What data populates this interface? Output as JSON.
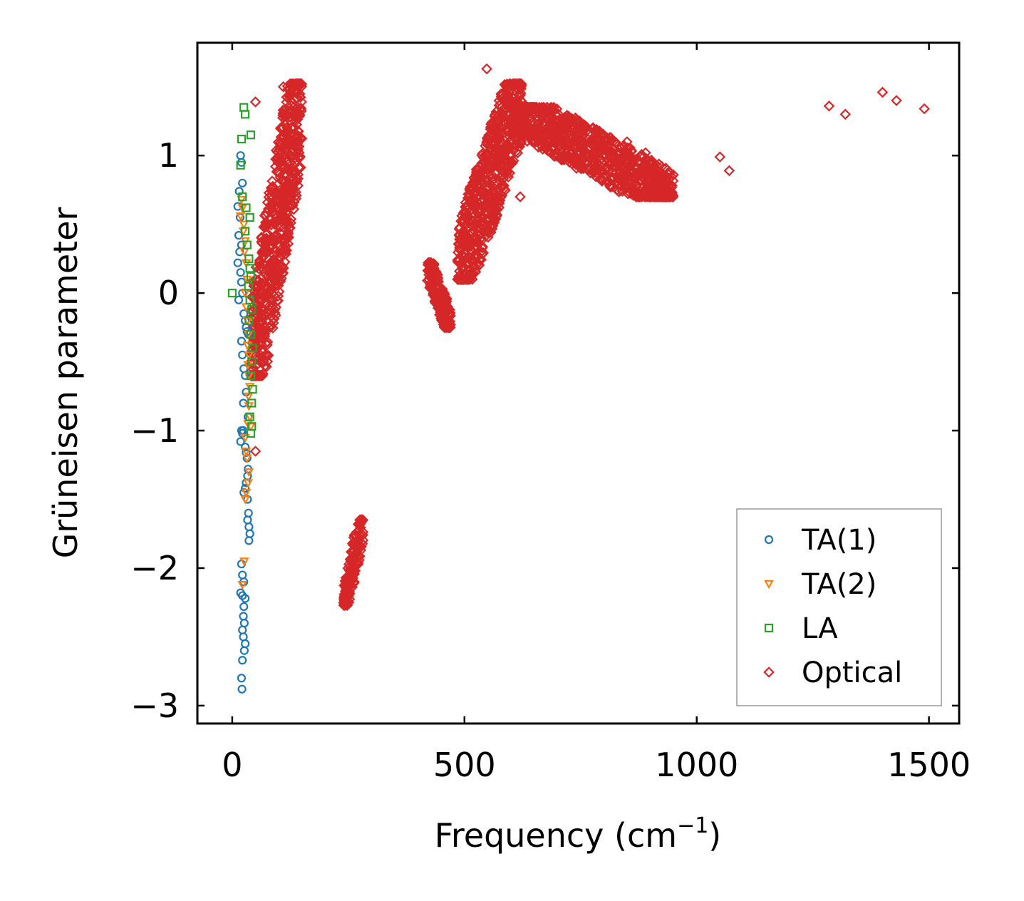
{
  "chart_data": {
    "type": "scatter",
    "title": "",
    "xlabel": "Frequency (cm",
    "xlabel_sup": "−1",
    "xlabel_end": ")",
    "ylabel": "Grüneisen parameter",
    "xlim": [
      -75,
      1565
    ],
    "ylim": [
      -3.13,
      1.82
    ],
    "xticks": [
      0,
      500,
      1000,
      1500
    ],
    "xtick_labels": [
      "0",
      "500",
      "1000",
      "1500"
    ],
    "yticks": [
      -3,
      -2,
      -1,
      0,
      1
    ],
    "ytick_labels": [
      "−3",
      "−2",
      "−1",
      "0",
      "1"
    ],
    "grid": false,
    "legend_position": "lower-right",
    "series": [
      {
        "name": "TA(1)",
        "marker": "circle",
        "color": "#1f77b4",
        "points": [
          [
            18,
            1.0
          ],
          [
            20,
            0.95
          ],
          [
            22,
            0.8
          ],
          [
            15,
            0.74
          ],
          [
            12,
            0.63
          ],
          [
            17,
            0.55
          ],
          [
            14,
            0.42
          ],
          [
            20,
            0.35
          ],
          [
            16,
            0.3
          ],
          [
            12,
            0.22
          ],
          [
            18,
            0.15
          ],
          [
            20,
            0.08
          ],
          [
            22,
            0.0
          ],
          [
            14,
            -0.05
          ],
          [
            25,
            -0.15
          ],
          [
            28,
            -0.2
          ],
          [
            30,
            -0.25
          ],
          [
            32,
            -0.28
          ],
          [
            35,
            -0.3
          ],
          [
            20,
            -0.35
          ],
          [
            22,
            -0.45
          ],
          [
            25,
            -0.55
          ],
          [
            28,
            -0.6
          ],
          [
            30,
            -0.72
          ],
          [
            24,
            -0.8
          ],
          [
            34,
            -0.9
          ],
          [
            20,
            -1.0
          ],
          [
            22,
            -1.02
          ],
          [
            24,
            -1.0
          ],
          [
            18,
            -1.08
          ],
          [
            28,
            -1.12
          ],
          [
            30,
            -1.16
          ],
          [
            32,
            -1.2
          ],
          [
            34,
            -1.28
          ],
          [
            33,
            -1.33
          ],
          [
            30,
            -1.38
          ],
          [
            28,
            -1.42
          ],
          [
            25,
            -1.45
          ],
          [
            33,
            -1.5
          ],
          [
            35,
            -1.6
          ],
          [
            33,
            -1.65
          ],
          [
            36,
            -1.7
          ],
          [
            38,
            -1.75
          ],
          [
            36,
            -1.8
          ],
          [
            20,
            -1.97
          ],
          [
            22,
            -2.05
          ],
          [
            25,
            -2.1
          ],
          [
            18,
            -2.18
          ],
          [
            22,
            -2.2
          ],
          [
            28,
            -2.22
          ],
          [
            25,
            -2.28
          ],
          [
            24,
            -2.35
          ],
          [
            26,
            -2.4
          ],
          [
            22,
            -2.45
          ],
          [
            24,
            -2.5
          ],
          [
            28,
            -2.55
          ],
          [
            26,
            -2.6
          ],
          [
            22,
            -2.67
          ],
          [
            20,
            -2.8
          ],
          [
            21,
            -2.88
          ]
        ]
      },
      {
        "name": "TA(2)",
        "marker": "triangle-down",
        "color": "#ff7f0e",
        "points": [
          [
            20,
            0.68
          ],
          [
            22,
            0.62
          ],
          [
            18,
            0.56
          ],
          [
            25,
            0.5
          ],
          [
            24,
            0.45
          ],
          [
            28,
            0.38
          ],
          [
            26,
            0.3
          ],
          [
            30,
            0.22
          ],
          [
            32,
            0.1
          ],
          [
            28,
            0.0
          ],
          [
            30,
            -0.1
          ],
          [
            33,
            -0.2
          ],
          [
            35,
            -0.3
          ],
          [
            33,
            -0.38
          ],
          [
            36,
            -0.45
          ],
          [
            34,
            -0.52
          ],
          [
            36,
            -0.6
          ],
          [
            38,
            -0.68
          ],
          [
            35,
            -0.75
          ],
          [
            36,
            -0.82
          ],
          [
            38,
            -0.9
          ],
          [
            34,
            -0.95
          ],
          [
            40,
            -0.97
          ],
          [
            28,
            -1.05
          ],
          [
            30,
            -1.15
          ],
          [
            32,
            -1.2
          ],
          [
            36,
            -1.3
          ],
          [
            34,
            -1.38
          ],
          [
            30,
            -1.45
          ],
          [
            28,
            -1.5
          ],
          [
            26,
            -1.95
          ],
          [
            22,
            -2.12
          ]
        ]
      },
      {
        "name": "LA",
        "marker": "square",
        "color": "#2ca02c",
        "points": [
          [
            25,
            1.35
          ],
          [
            28,
            1.3
          ],
          [
            40,
            1.15
          ],
          [
            20,
            1.12
          ],
          [
            18,
            0.93
          ],
          [
            22,
            0.7
          ],
          [
            30,
            0.62
          ],
          [
            38,
            0.55
          ],
          [
            28,
            0.45
          ],
          [
            32,
            0.35
          ],
          [
            36,
            0.25
          ],
          [
            38,
            0.18
          ],
          [
            40,
            0.12
          ],
          [
            35,
            0.05
          ],
          [
            0,
            0.0
          ],
          [
            38,
            -0.05
          ],
          [
            42,
            -0.12
          ],
          [
            36,
            -0.2
          ],
          [
            40,
            -0.3
          ],
          [
            44,
            -0.4
          ],
          [
            42,
            -0.5
          ],
          [
            40,
            -0.6
          ],
          [
            44,
            -0.7
          ],
          [
            42,
            -0.8
          ],
          [
            38,
            -0.9
          ],
          [
            42,
            -0.97
          ],
          [
            40,
            -1.02
          ]
        ]
      },
      {
        "name": "Optical",
        "marker": "diamond",
        "color": "#d62728",
        "points": [
          [
            548,
            1.63
          ],
          [
            50,
            1.39
          ],
          [
            110,
            1.5
          ],
          [
            140,
            1.52
          ],
          [
            1400,
            1.46
          ],
          [
            1430,
            1.4
          ],
          [
            1490,
            1.34
          ],
          [
            1285,
            1.36
          ],
          [
            1320,
            1.3
          ],
          [
            1050,
            0.99
          ],
          [
            1070,
            0.89
          ],
          [
            925,
            0.92
          ],
          [
            890,
            1.02
          ],
          [
            80,
            0.18
          ],
          [
            60,
            -0.45
          ],
          [
            50,
            -1.15
          ],
          [
            540,
            0.9
          ],
          [
            560,
            1.1
          ],
          [
            580,
            1.3
          ],
          [
            600,
            0.95
          ],
          [
            620,
            0.7
          ],
          [
            650,
            1.2
          ],
          [
            700,
            1.25
          ],
          [
            750,
            1.2
          ],
          [
            800,
            1.05
          ],
          [
            850,
            1.1
          ],
          [
            900,
            0.95
          ],
          [
            460,
            -0.2
          ],
          [
            450,
            0.0
          ],
          [
            440,
            0.12
          ],
          [
            430,
            0.2
          ],
          [
            500,
            0.35
          ],
          [
            520,
            0.2
          ],
          [
            280,
            -1.65
          ],
          [
            240,
            -2.25
          ]
        ],
        "clusters": [
          {
            "x": [
              40,
              150
            ],
            "y": [
              -0.6,
              1.52
            ],
            "tilt": "rising",
            "density": 700
          },
          {
            "x": [
              420,
              470
            ],
            "y": [
              -0.25,
              0.22
            ],
            "tilt": "falling",
            "density": 180
          },
          {
            "x": [
              240,
              282
            ],
            "y": [
              -2.27,
              -1.65
            ],
            "tilt": "rising",
            "density": 160
          },
          {
            "x": [
              485,
              625
            ],
            "y": [
              0.1,
              1.52
            ],
            "tilt": "rising",
            "density": 650
          },
          {
            "x": [
              600,
              950
            ],
            "y": [
              0.7,
              1.35
            ],
            "tilt": "falling",
            "density": 900
          }
        ]
      }
    ]
  }
}
